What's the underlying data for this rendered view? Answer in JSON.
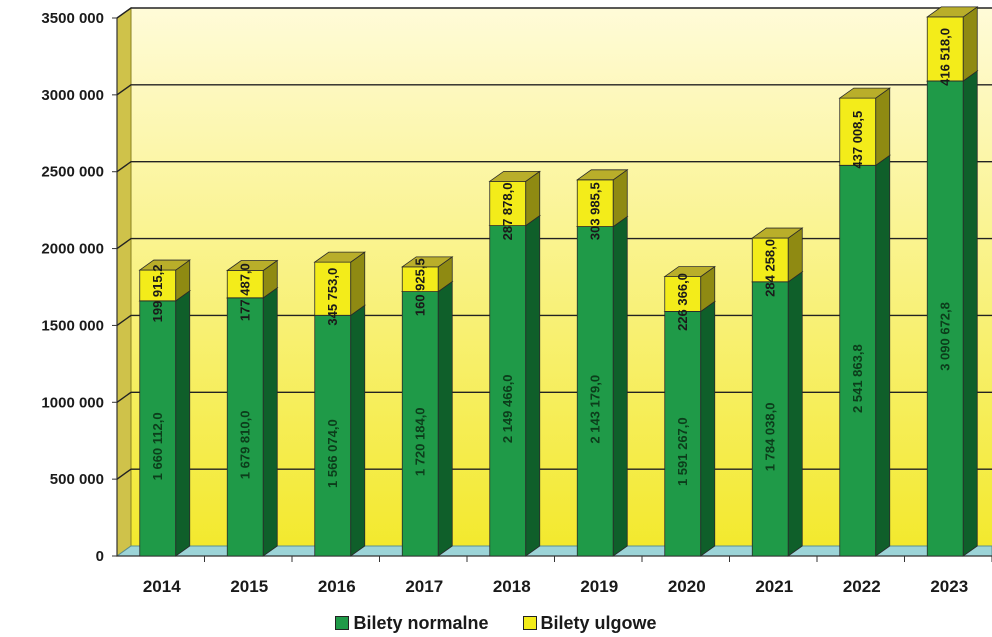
{
  "colors": {
    "normalne": "#1f9a48",
    "normalne_dark": "#0f5f2a",
    "normalne_top": "#6cc98a",
    "ulgowe": "#f3ec1a",
    "ulgowe_dark": "#8f8a12",
    "ulgowe_top": "#b9ae2a",
    "wall_top": "#fff9c8",
    "wall_bottom": "#f4ea3a",
    "floor": "#9cd4d8"
  },
  "chart_data": {
    "type": "bar",
    "stacked": true,
    "three_d": true,
    "categories": [
      "2014",
      "2015",
      "2016",
      "2017",
      "2018",
      "2019",
      "2020",
      "2021",
      "2022",
      "2023"
    ],
    "series": [
      {
        "name": "Bilety normalne",
        "values": [
          1660112.0,
          1679810.0,
          1566074.0,
          1720184.0,
          2149466.0,
          2143179.0,
          1591267.0,
          1784038.0,
          2541863.8,
          3090672.8
        ],
        "labels": [
          "1 660 112,0",
          "1 679 810,0",
          "1 566 074,0",
          "1 720 184,0",
          "2 149 466,0",
          "2 143 179,0",
          "1 591 267,0",
          "1 784 038,0",
          "2 541 863,8",
          "3 090 672,8"
        ]
      },
      {
        "name": "Bilety ulgowe",
        "values": [
          199915.2,
          177487.0,
          345753.0,
          160925.5,
          287878.0,
          303985.5,
          226366.0,
          284258.0,
          437008.5,
          416518.0
        ],
        "labels": [
          "199 915,2",
          "177 487,0",
          "345 753,0",
          "160 925,5",
          "287 878,0",
          "303 985,5",
          "226 366,0",
          "284 258,0",
          "437 008,5",
          "416 518,0"
        ]
      }
    ],
    "yticks": [
      "0",
      "500 000",
      "1000 000",
      "1500 000",
      "2000 000",
      "2500 000",
      "3000 000",
      "3500 000"
    ],
    "ylim": [
      0,
      3500000
    ],
    "grid": true,
    "legend": "bottom-center"
  }
}
